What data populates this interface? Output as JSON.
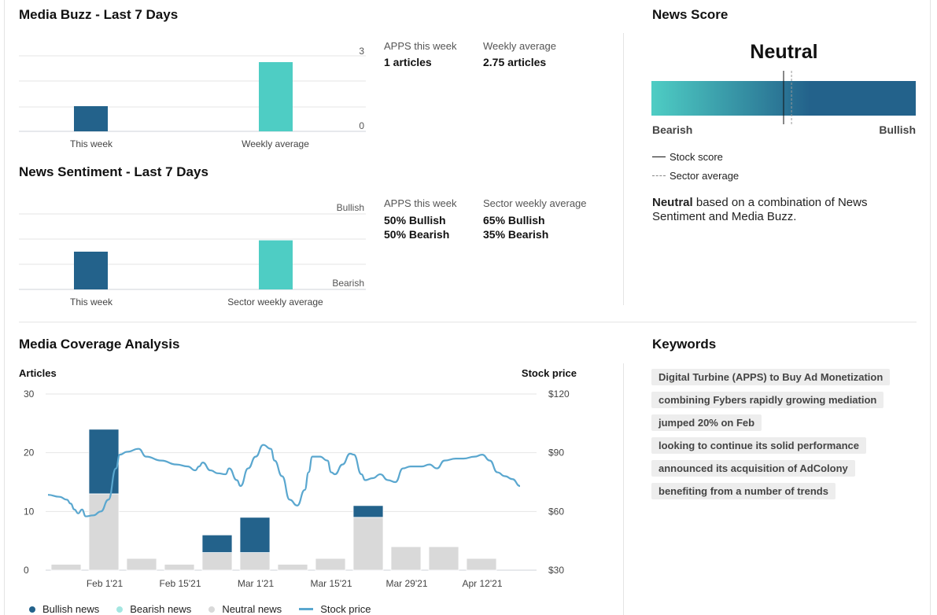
{
  "colors": {
    "bullish": "#23628b",
    "bearish": "#4ecdc4",
    "neutral": "#d9d9d9",
    "stock": "#5aa7cf",
    "grid": "#e6e6e6"
  },
  "media_buzz": {
    "title": "Media Buzz - Last 7 Days",
    "axis_max": "3",
    "axis_min": "0",
    "bars": [
      {
        "label": "This week",
        "value": 1
      },
      {
        "label": "Weekly average",
        "value": 2.75
      }
    ],
    "stats": [
      {
        "label": "APPS this week",
        "value": "1 articles"
      },
      {
        "label": "Weekly average",
        "value": "2.75 articles"
      }
    ]
  },
  "news_sentiment": {
    "title": "News Sentiment - Last 7 Days",
    "axis_top": "Bullish",
    "axis_bottom": "Bearish",
    "bars": [
      {
        "label": "This week",
        "value": 0.5
      },
      {
        "label": "Sector weekly average",
        "value": 0.65
      }
    ],
    "stats": [
      {
        "label": "APPS this week",
        "line1": "50% Bullish",
        "line2": "50% Bearish"
      },
      {
        "label": "Sector weekly average",
        "line1": "65% Bullish",
        "line2": "35% Bearish"
      }
    ]
  },
  "news_score": {
    "title": "News Score",
    "verdict": "Neutral",
    "scale_low": "Bearish",
    "scale_high": "Bullish",
    "stock_score": 0.5,
    "sector_average": 0.53,
    "legend_stock": "Stock score",
    "legend_sector": "Sector average",
    "summary_bold": "Neutral",
    "summary_rest": " based on a combination of News Sentiment and Media Buzz."
  },
  "coverage": {
    "title": "Media Coverage Analysis",
    "left_axis_title": "Articles",
    "right_axis_title": "Stock price",
    "legend": {
      "bullish": "Bullish news",
      "bearish": "Bearish news",
      "neutral": "Neutral news",
      "stock": "Stock price"
    }
  },
  "chart_data": {
    "type": "bar",
    "title": "Media Coverage Analysis",
    "ylabel": "Articles",
    "y2label": "Stock price",
    "ylim": [
      0,
      30
    ],
    "y2lim": [
      30,
      120
    ],
    "y_ticks": [
      "0",
      "10",
      "20",
      "30"
    ],
    "y2_ticks": [
      "$30",
      "$60",
      "$90",
      "$120"
    ],
    "x_ticks": [
      {
        "label": "Feb 1'21",
        "week": 1.5
      },
      {
        "label": "Feb 15'21",
        "week": 3.5
      },
      {
        "label": "Mar 1'21",
        "week": 5.5
      },
      {
        "label": "Mar 15'21",
        "week": 7.5
      },
      {
        "label": "Mar 29'21",
        "week": 9.5
      },
      {
        "label": "Apr 12'21",
        "week": 11.5
      }
    ],
    "categories": [
      "W0",
      "W1",
      "W2",
      "W3",
      "W4",
      "W5",
      "W6",
      "W7",
      "W8",
      "W9",
      "W10",
      "W11"
    ],
    "series": [
      {
        "name": "Neutral news",
        "values": [
          1,
          13,
          2,
          1,
          3,
          3,
          1,
          2,
          9,
          4,
          4,
          2
        ]
      },
      {
        "name": "Bullish news",
        "values": [
          0,
          11,
          0,
          0,
          3,
          6,
          0,
          0,
          2,
          0,
          0,
          0
        ]
      },
      {
        "name": "Bearish news",
        "values": [
          0,
          0,
          0,
          0,
          0,
          0,
          0,
          0,
          0,
          0,
          0,
          0
        ]
      }
    ],
    "stock_price": [
      [
        0.0,
        68.5
      ],
      [
        0.3,
        67.5
      ],
      [
        0.5,
        66
      ],
      [
        0.6,
        64
      ],
      [
        0.7,
        61
      ],
      [
        0.8,
        59
      ],
      [
        0.9,
        61
      ],
      [
        1.0,
        57.5
      ],
      [
        1.2,
        58
      ],
      [
        1.4,
        60
      ],
      [
        1.6,
        66
      ],
      [
        1.8,
        82
      ],
      [
        1.9,
        89
      ],
      [
        2.1,
        90.5
      ],
      [
        2.4,
        92
      ],
      [
        2.6,
        88
      ],
      [
        3.0,
        86
      ],
      [
        3.4,
        84
      ],
      [
        3.7,
        83
      ],
      [
        3.9,
        81
      ],
      [
        4.0,
        83
      ],
      [
        4.1,
        85
      ],
      [
        4.3,
        81
      ],
      [
        4.5,
        79.5
      ],
      [
        4.7,
        79
      ],
      [
        4.8,
        82
      ],
      [
        5.0,
        76
      ],
      [
        5.1,
        73
      ],
      [
        5.3,
        82
      ],
      [
        5.5,
        88
      ],
      [
        5.7,
        94
      ],
      [
        5.9,
        92
      ],
      [
        6.0,
        86
      ],
      [
        6.2,
        78
      ],
      [
        6.4,
        66
      ],
      [
        6.6,
        63
      ],
      [
        6.8,
        71
      ],
      [
        6.9,
        80
      ],
      [
        7.0,
        88
      ],
      [
        7.2,
        88
      ],
      [
        7.4,
        86
      ],
      [
        7.5,
        80
      ],
      [
        7.6,
        79
      ],
      [
        7.8,
        84
      ],
      [
        8.0,
        89.5
      ],
      [
        8.1,
        89
      ],
      [
        8.3,
        79
      ],
      [
        8.4,
        76
      ],
      [
        8.6,
        77
      ],
      [
        8.8,
        79
      ],
      [
        9.0,
        76
      ],
      [
        9.2,
        75
      ],
      [
        9.4,
        82
      ],
      [
        9.6,
        83
      ],
      [
        9.9,
        83
      ],
      [
        10.1,
        84
      ],
      [
        10.3,
        82
      ],
      [
        10.5,
        86
      ],
      [
        10.8,
        87
      ],
      [
        11.0,
        87
      ],
      [
        11.3,
        88
      ],
      [
        11.5,
        89
      ],
      [
        11.7,
        86
      ],
      [
        11.9,
        80
      ],
      [
        12.1,
        78
      ],
      [
        12.3,
        76.5
      ],
      [
        12.5,
        73
      ]
    ]
  },
  "keywords": {
    "title": "Keywords",
    "items": [
      "Digital Turbine (APPS) to Buy Ad Monetization",
      "combining Fybers rapidly growing mediation",
      "jumped 20% on Feb",
      "looking to continue its solid performance",
      "announced its acquisition of AdColony",
      "benefiting from a number of trends"
    ]
  }
}
